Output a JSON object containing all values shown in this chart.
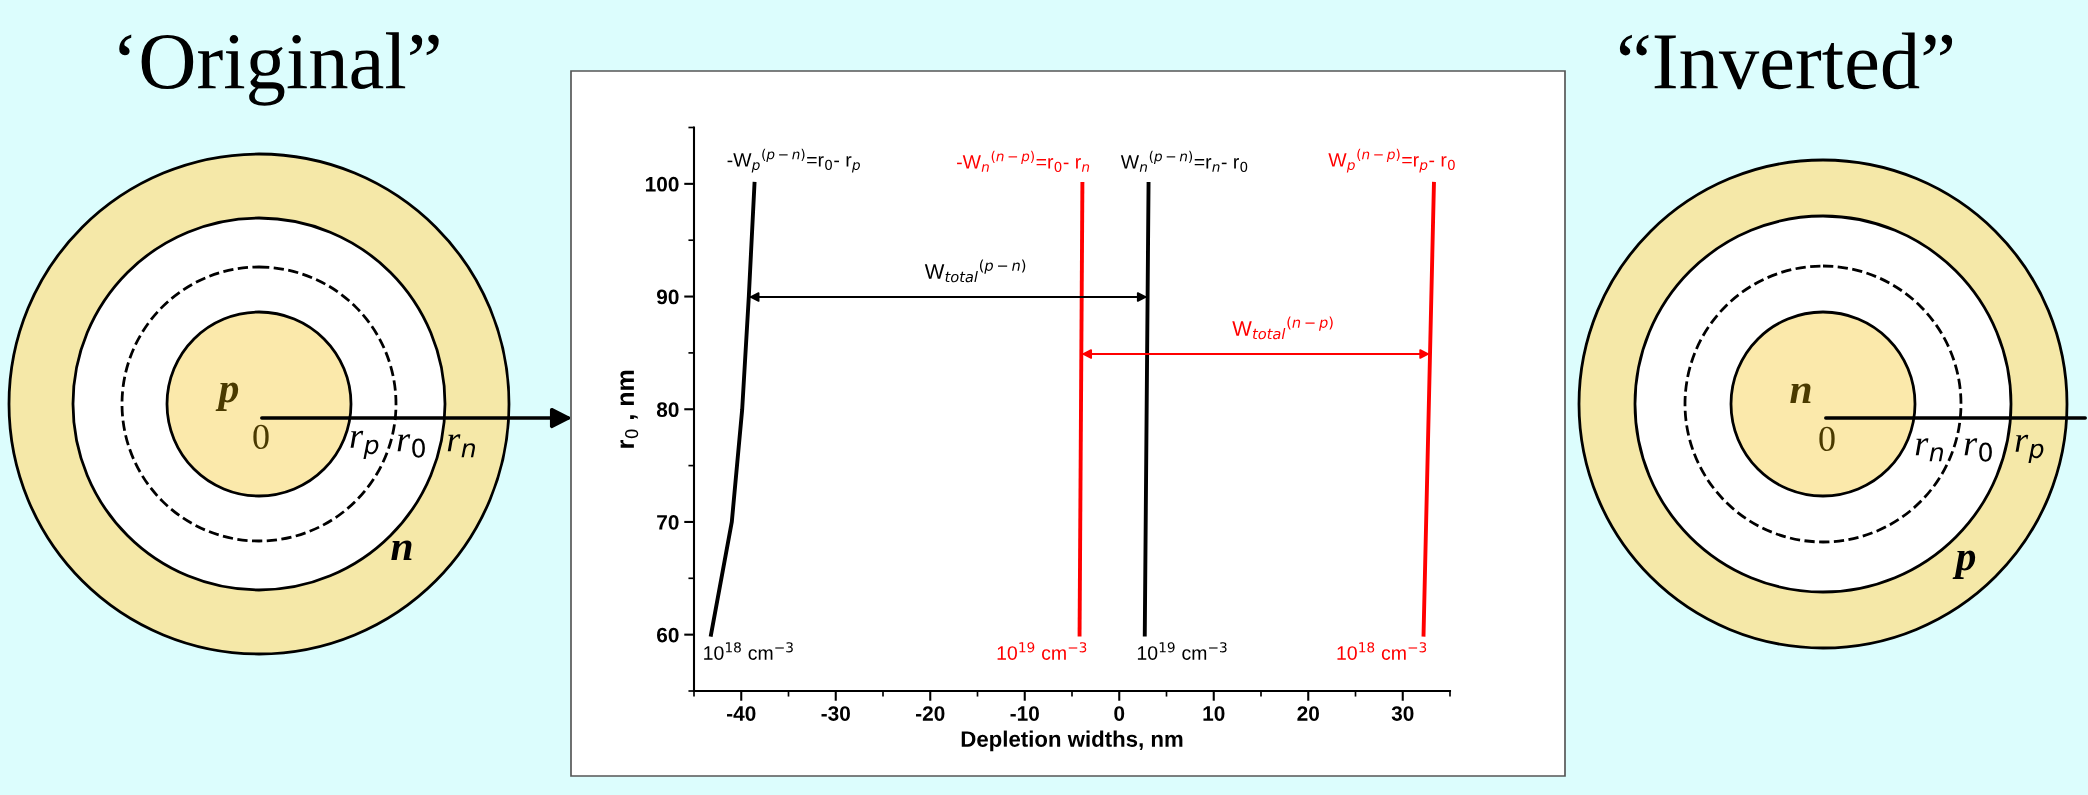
{
  "chart_data": {
    "type": "line",
    "xlabel": "Depletion widths, nm",
    "ylabel": "r$_{0}$ , nm",
    "xlim": [
      -45,
      35
    ],
    "ylim": [
      55,
      105
    ],
    "xticks": [
      {
        "value": -45,
        "label": null
      },
      -40,
      {
        "value": -35,
        "label": null
      },
      -30,
      {
        "value": -25,
        "label": null
      },
      -20,
      {
        "value": -15,
        "label": null
      },
      -10,
      {
        "value": -5,
        "label": null
      },
      0,
      {
        "value": 5,
        "label": null
      },
      10,
      {
        "value": 15,
        "label": null
      },
      20,
      {
        "value": 25,
        "label": null
      },
      30,
      {
        "value": 35,
        "label": null
      }
    ],
    "yticks": [
      {
        "value": 55,
        "label": null
      },
      60,
      {
        "value": 65,
        "label": null
      },
      70,
      {
        "value": 75,
        "label": null
      },
      80,
      {
        "value": 85,
        "label": null
      },
      90,
      {
        "value": 95,
        "label": null
      },
      100,
      {
        "value": 105,
        "label": null
      }
    ],
    "grid": false,
    "line_style": "solid",
    "marker": "none",
    "series": [
      {
        "color": "#000000",
        "x": [
          -43.2,
          -41.0,
          -39.9,
          -39.2,
          -38.6
        ],
        "values": [
          60,
          70,
          80,
          90,
          100
        ]
      },
      {
        "color": "#ff0000",
        "x": [
          -4.2,
          -3.9
        ],
        "values": [
          60,
          100
        ]
      },
      {
        "color": "#000000",
        "x": [
          2.7,
          3.1
        ],
        "values": [
          60,
          100
        ]
      },
      {
        "color": "#ff0000",
        "x": [
          32.2,
          33.3
        ],
        "values": [
          60,
          100
        ]
      }
    ],
    "annotations": [
      {
        "text": "-W$_{p}$$^{(p−n)}$=r$_{0}$- r$_{p}$",
        "x": -38.6,
        "y": 100
      },
      {
        "text": "-W$_{n}$$^{(n−p)}$=r$_{0}$- r$_{n}$",
        "x": -3.9,
        "y": 100
      },
      {
        "text": "W$_{n}$$^{(p−n)}$=r$_{n}$- r$_{0}$",
        "x": 3.1,
        "y": 100
      },
      {
        "text": "W$_{p}$$^{(n−p)}$=r$_{p}$- r$_{0}$",
        "x": 33.3,
        "y": 100
      },
      {
        "text": "10$^{18}$ cm$^{−3}$",
        "x": -43.2,
        "y": 60
      },
      {
        "text": "10$^{19}$ cm$^{−3}$",
        "x": -4.2,
        "y": 60
      },
      {
        "text": "10$^{19}$ cm$^{−3}$",
        "x": 2.7,
        "y": 60
      },
      {
        "text": "10$^{18}$ cm$^{−3}$",
        "x": 32.2,
        "y": 60
      },
      "W$_{total}$$^{(p−n)}$",
      "W$_{total}$$^{(n−p)}$",
      "‘Original”",
      "p",
      "0",
      "r$_{p}$",
      "r$_{0}$",
      "r$_{n}$",
      "n",
      "“Inverted”",
      "n",
      "0",
      "r$_{n}$",
      "r$_{0}$",
      "r$_{p}$",
      "p"
    ]
  }
}
